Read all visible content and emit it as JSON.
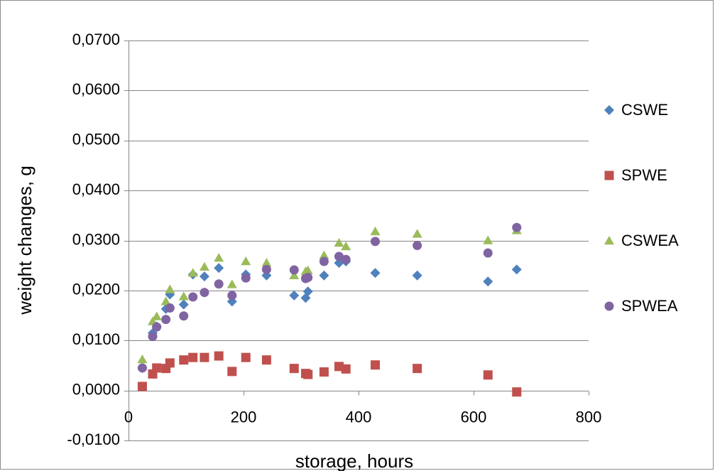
{
  "chart_data": {
    "type": "scatter",
    "title": "",
    "xlabel": "storage, hours",
    "ylabel": "weight changes, g",
    "xlim": [
      0,
      800
    ],
    "ylim": [
      -0.01,
      0.07
    ],
    "x_ticks": [
      "0",
      "200",
      "400",
      "600",
      "800"
    ],
    "x_tick_values": [
      0,
      200,
      400,
      600,
      800
    ],
    "y_ticks": [
      "-0,0100",
      "0,0000",
      "0,0100",
      "0,0200",
      "0,0300",
      "0,0400",
      "0,0500",
      "0,0600",
      "0,0700"
    ],
    "y_tick_values": [
      -0.01,
      0,
      0.01,
      0.02,
      0.03,
      0.04,
      0.05,
      0.06,
      0.07
    ],
    "grid": "y-major",
    "legend_position": "right",
    "series": [
      {
        "name": "CSWE",
        "marker": "diamond",
        "color": "#4f81bd",
        "points": [
          [
            24,
            0.0045
          ],
          [
            42,
            0.0115
          ],
          [
            49,
            0.0128
          ],
          [
            65,
            0.0163
          ],
          [
            72,
            0.0192
          ],
          [
            96,
            0.0172
          ],
          [
            112,
            0.0232
          ],
          [
            132,
            0.0228
          ],
          [
            157,
            0.0245
          ],
          [
            180,
            0.0178
          ],
          [
            204,
            0.0232
          ],
          [
            240,
            0.023
          ],
          [
            288,
            0.019
          ],
          [
            308,
            0.0185
          ],
          [
            312,
            0.0198
          ],
          [
            340,
            0.023
          ],
          [
            366,
            0.0255
          ],
          [
            378,
            0.0258
          ],
          [
            429,
            0.0235
          ],
          [
            502,
            0.023
          ],
          [
            625,
            0.0218
          ],
          [
            675,
            0.0242
          ]
        ]
      },
      {
        "name": "SPWE",
        "marker": "square",
        "color": "#c0504d",
        "points": [
          [
            24,
            0.0008
          ],
          [
            42,
            0.0033
          ],
          [
            49,
            0.0045
          ],
          [
            65,
            0.0044
          ],
          [
            72,
            0.0055
          ],
          [
            96,
            0.0061
          ],
          [
            112,
            0.0066
          ],
          [
            132,
            0.0066
          ],
          [
            157,
            0.0069
          ],
          [
            180,
            0.0038
          ],
          [
            204,
            0.0066
          ],
          [
            240,
            0.0061
          ],
          [
            288,
            0.0044
          ],
          [
            308,
            0.0034
          ],
          [
            312,
            0.0032
          ],
          [
            340,
            0.0037
          ],
          [
            366,
            0.0048
          ],
          [
            378,
            0.0043
          ],
          [
            429,
            0.0051
          ],
          [
            502,
            0.0044
          ],
          [
            625,
            0.0031
          ],
          [
            675,
            -0.0003
          ]
        ]
      },
      {
        "name": "CSWEA",
        "marker": "triangle",
        "color": "#9bbb59",
        "points": [
          [
            24,
            0.0062
          ],
          [
            42,
            0.0138
          ],
          [
            49,
            0.0148
          ],
          [
            65,
            0.0178
          ],
          [
            72,
            0.0202
          ],
          [
            96,
            0.0188
          ],
          [
            112,
            0.0235
          ],
          [
            132,
            0.0247
          ],
          [
            157,
            0.0265
          ],
          [
            180,
            0.0212
          ],
          [
            204,
            0.0258
          ],
          [
            240,
            0.0255
          ],
          [
            288,
            0.023
          ],
          [
            308,
            0.0238
          ],
          [
            312,
            0.024
          ],
          [
            340,
            0.027
          ],
          [
            366,
            0.0295
          ],
          [
            378,
            0.0288
          ],
          [
            429,
            0.0318
          ],
          [
            502,
            0.0313
          ],
          [
            625,
            0.03
          ],
          [
            675,
            0.032
          ]
        ]
      },
      {
        "name": "SPWEA",
        "marker": "circle",
        "color": "#8064a2",
        "points": [
          [
            24,
            0.0045
          ],
          [
            42,
            0.0108
          ],
          [
            49,
            0.0127
          ],
          [
            65,
            0.0142
          ],
          [
            72,
            0.0165
          ],
          [
            96,
            0.0149
          ],
          [
            112,
            0.0187
          ],
          [
            132,
            0.0196
          ],
          [
            157,
            0.0213
          ],
          [
            180,
            0.019
          ],
          [
            204,
            0.0225
          ],
          [
            240,
            0.0242
          ],
          [
            288,
            0.0241
          ],
          [
            308,
            0.0224
          ],
          [
            312,
            0.0226
          ],
          [
            340,
            0.0258
          ],
          [
            366,
            0.0268
          ],
          [
            378,
            0.0262
          ],
          [
            429,
            0.0298
          ],
          [
            502,
            0.029
          ],
          [
            625,
            0.0275
          ],
          [
            675,
            0.0326
          ]
        ]
      }
    ]
  }
}
